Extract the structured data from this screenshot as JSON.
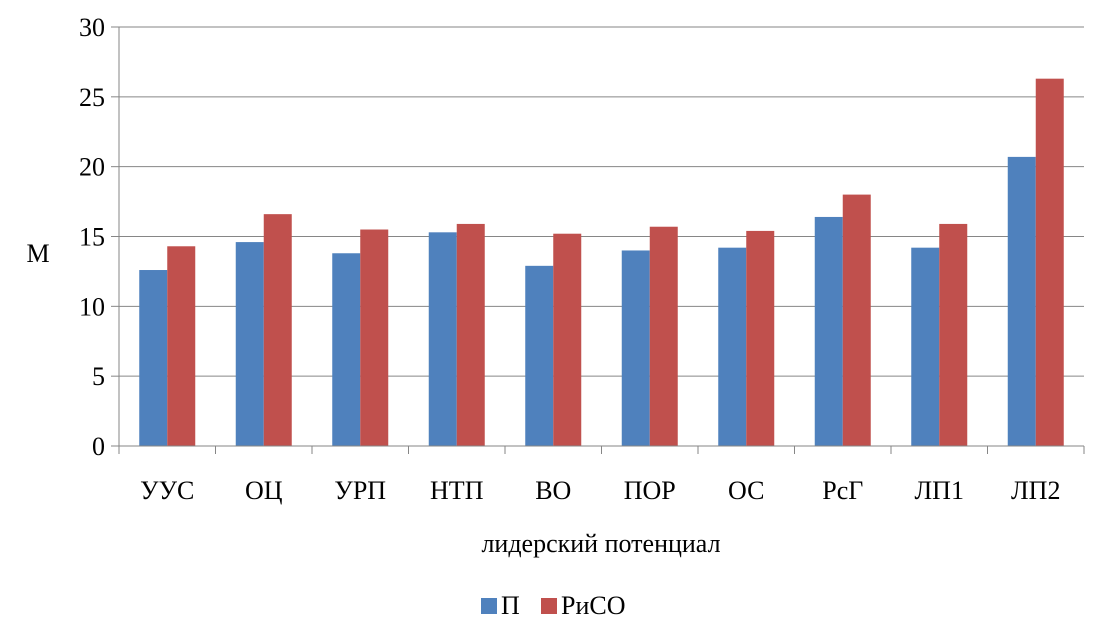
{
  "chart_data": {
    "type": "bar",
    "categories": [
      "УУС",
      "ОЦ",
      "УРП",
      "НТП",
      "ВО",
      "ПОР",
      "ОС",
      "РсГ",
      "ЛП1",
      "ЛП2"
    ],
    "series": [
      {
        "name": "П",
        "color": "#4F81BD",
        "values": [
          12.6,
          14.6,
          13.8,
          15.3,
          12.9,
          14.0,
          14.2,
          16.4,
          14.2,
          20.7
        ]
      },
      {
        "name": "РиСО",
        "color": "#C0504D",
        "values": [
          14.3,
          16.6,
          15.5,
          15.9,
          15.2,
          15.7,
          15.4,
          18.0,
          15.9,
          26.3
        ]
      }
    ],
    "xlabel": "лидерский потенциал",
    "ylabel": "М",
    "ylim": [
      0,
      30
    ],
    "yticks": [
      0,
      5,
      10,
      15,
      20,
      25,
      30
    ],
    "grid": true,
    "legend": "bottom"
  }
}
